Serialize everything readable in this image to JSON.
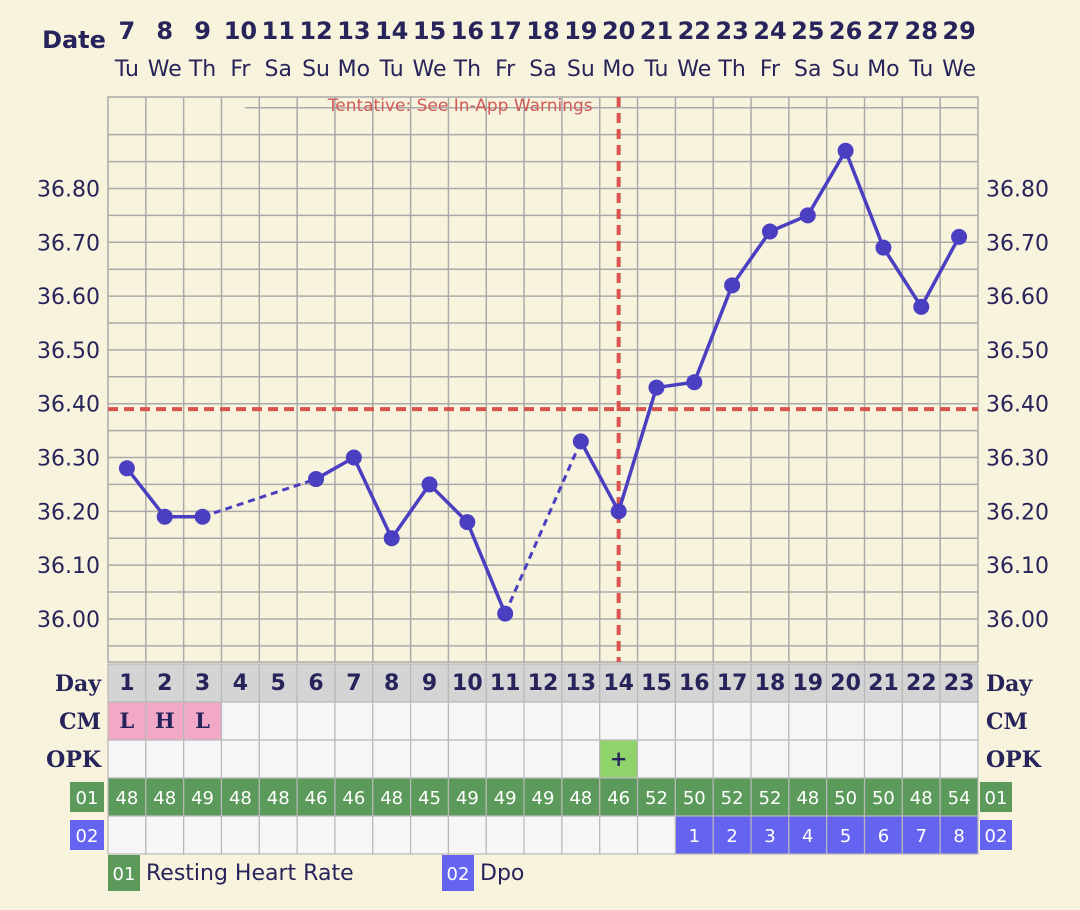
{
  "header": {
    "date_label": "Date",
    "day_label": "Day"
  },
  "row_labels": {
    "cm": "CM",
    "opk": "OPK",
    "rhr_code": "01",
    "dpo_code": "02"
  },
  "dates": [
    "7",
    "8",
    "9",
    "10",
    "11",
    "12",
    "13",
    "14",
    "15",
    "16",
    "17",
    "18",
    "19",
    "20",
    "21",
    "22",
    "23",
    "24",
    "25",
    "26",
    "27",
    "28",
    "29"
  ],
  "weekdays": [
    "Tu",
    "We",
    "Th",
    "Fr",
    "Sa",
    "Su",
    "Mo",
    "Tu",
    "We",
    "Th",
    "Fr",
    "Sa",
    "Su",
    "Mo",
    "Tu",
    "We",
    "Th",
    "Fr",
    "Sa",
    "Su",
    "Mo",
    "Tu",
    "We"
  ],
  "cycle_days": [
    "1",
    "2",
    "3",
    "4",
    "5",
    "6",
    "7",
    "8",
    "9",
    "10",
    "11",
    "12",
    "13",
    "14",
    "15",
    "16",
    "17",
    "18",
    "19",
    "20",
    "21",
    "22",
    "23"
  ],
  "cm": [
    "L",
    "H",
    "L",
    "",
    "",
    "",
    "",
    "",
    "",
    "",
    "",
    "",
    "",
    "",
    "",
    "",
    "",
    "",
    "",
    "",
    "",
    "",
    ""
  ],
  "opk": [
    "",
    "",
    "",
    "",
    "",
    "",
    "",
    "",
    "",
    "",
    "",
    "",
    "",
    "+",
    "",
    "",
    "",
    "",
    "",
    "",
    "",
    "",
    ""
  ],
  "resting_heart_rate": [
    "48",
    "48",
    "49",
    "48",
    "48",
    "46",
    "46",
    "48",
    "45",
    "49",
    "49",
    "49",
    "48",
    "46",
    "52",
    "50",
    "52",
    "52",
    "48",
    "50",
    "50",
    "48",
    "54"
  ],
  "dpo": [
    "",
    "",
    "",
    "",
    "",
    "",
    "",
    "",
    "",
    "",
    "",
    "",
    "",
    "",
    "",
    "1",
    "2",
    "3",
    "4",
    "5",
    "6",
    "7",
    "8"
  ],
  "legend": [
    {
      "code": "01",
      "label": "Resting Heart Rate",
      "color": "#5c9a5c"
    },
    {
      "code": "02",
      "label": "Dpo",
      "color": "#6464f0"
    }
  ],
  "tentative_label": "Tentative: See In-App Warnings",
  "colors": {
    "line": "#4a3fc0",
    "coverline": "#d9534f",
    "cm_fill": "#f2a9c8",
    "opk_fill": "#8fd46a",
    "rhr_fill": "#5c9a5c",
    "dpo_fill": "#6464f0",
    "grid": "#aaaaaa"
  },
  "chart_data": {
    "type": "line",
    "x": [
      "7",
      "8",
      "9",
      "10",
      "11",
      "12",
      "13",
      "14",
      "15",
      "16",
      "17",
      "18",
      "19",
      "20",
      "21",
      "22",
      "23",
      "24",
      "25",
      "26",
      "27",
      "28",
      "29"
    ],
    "series": [
      {
        "values": [
          36.28,
          36.19,
          36.19,
          null,
          null,
          36.26,
          36.3,
          36.15,
          36.25,
          36.18,
          36.01,
          null,
          36.33,
          36.2,
          36.43,
          36.44,
          36.62,
          36.72,
          36.75,
          36.87,
          36.69,
          36.58,
          36.71
        ]
      }
    ],
    "ylim": [
      35.92,
      36.97
    ],
    "yticks": [
      "36.00",
      "36.10",
      "36.20",
      "36.30",
      "36.40",
      "36.50",
      "36.60",
      "36.70",
      "36.80"
    ],
    "coverline": 36.39,
    "ovulation_day": "20",
    "dashed_gaps": [
      [
        2,
        5
      ],
      [
        10,
        12
      ]
    ],
    "grid": true
  }
}
